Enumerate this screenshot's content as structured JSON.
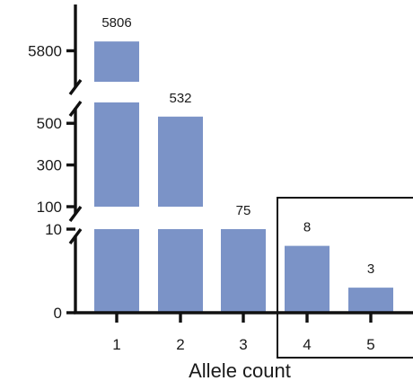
{
  "chart_data": {
    "type": "bar",
    "categories": [
      "1",
      "2",
      "3",
      "4",
      "5"
    ],
    "values": [
      5806,
      532,
      75,
      8,
      3
    ],
    "data_labels": [
      "5806",
      "532",
      "75",
      "8",
      "3"
    ],
    "xlabel": "Allele count",
    "ylabel": "",
    "y_axis": "broken",
    "y_segments": [
      {
        "range": [
          0,
          10
        ],
        "ticks": [
          "0",
          "10"
        ]
      },
      {
        "range": [
          100,
          600
        ],
        "ticks": [
          "100",
          "300",
          "500"
        ]
      },
      {
        "range": [
          5780,
          5820
        ],
        "ticks": [
          "5800"
        ]
      }
    ],
    "highlight_box": [
      "4",
      "5"
    ],
    "bar_color": "#7b93c7",
    "grid": false
  }
}
